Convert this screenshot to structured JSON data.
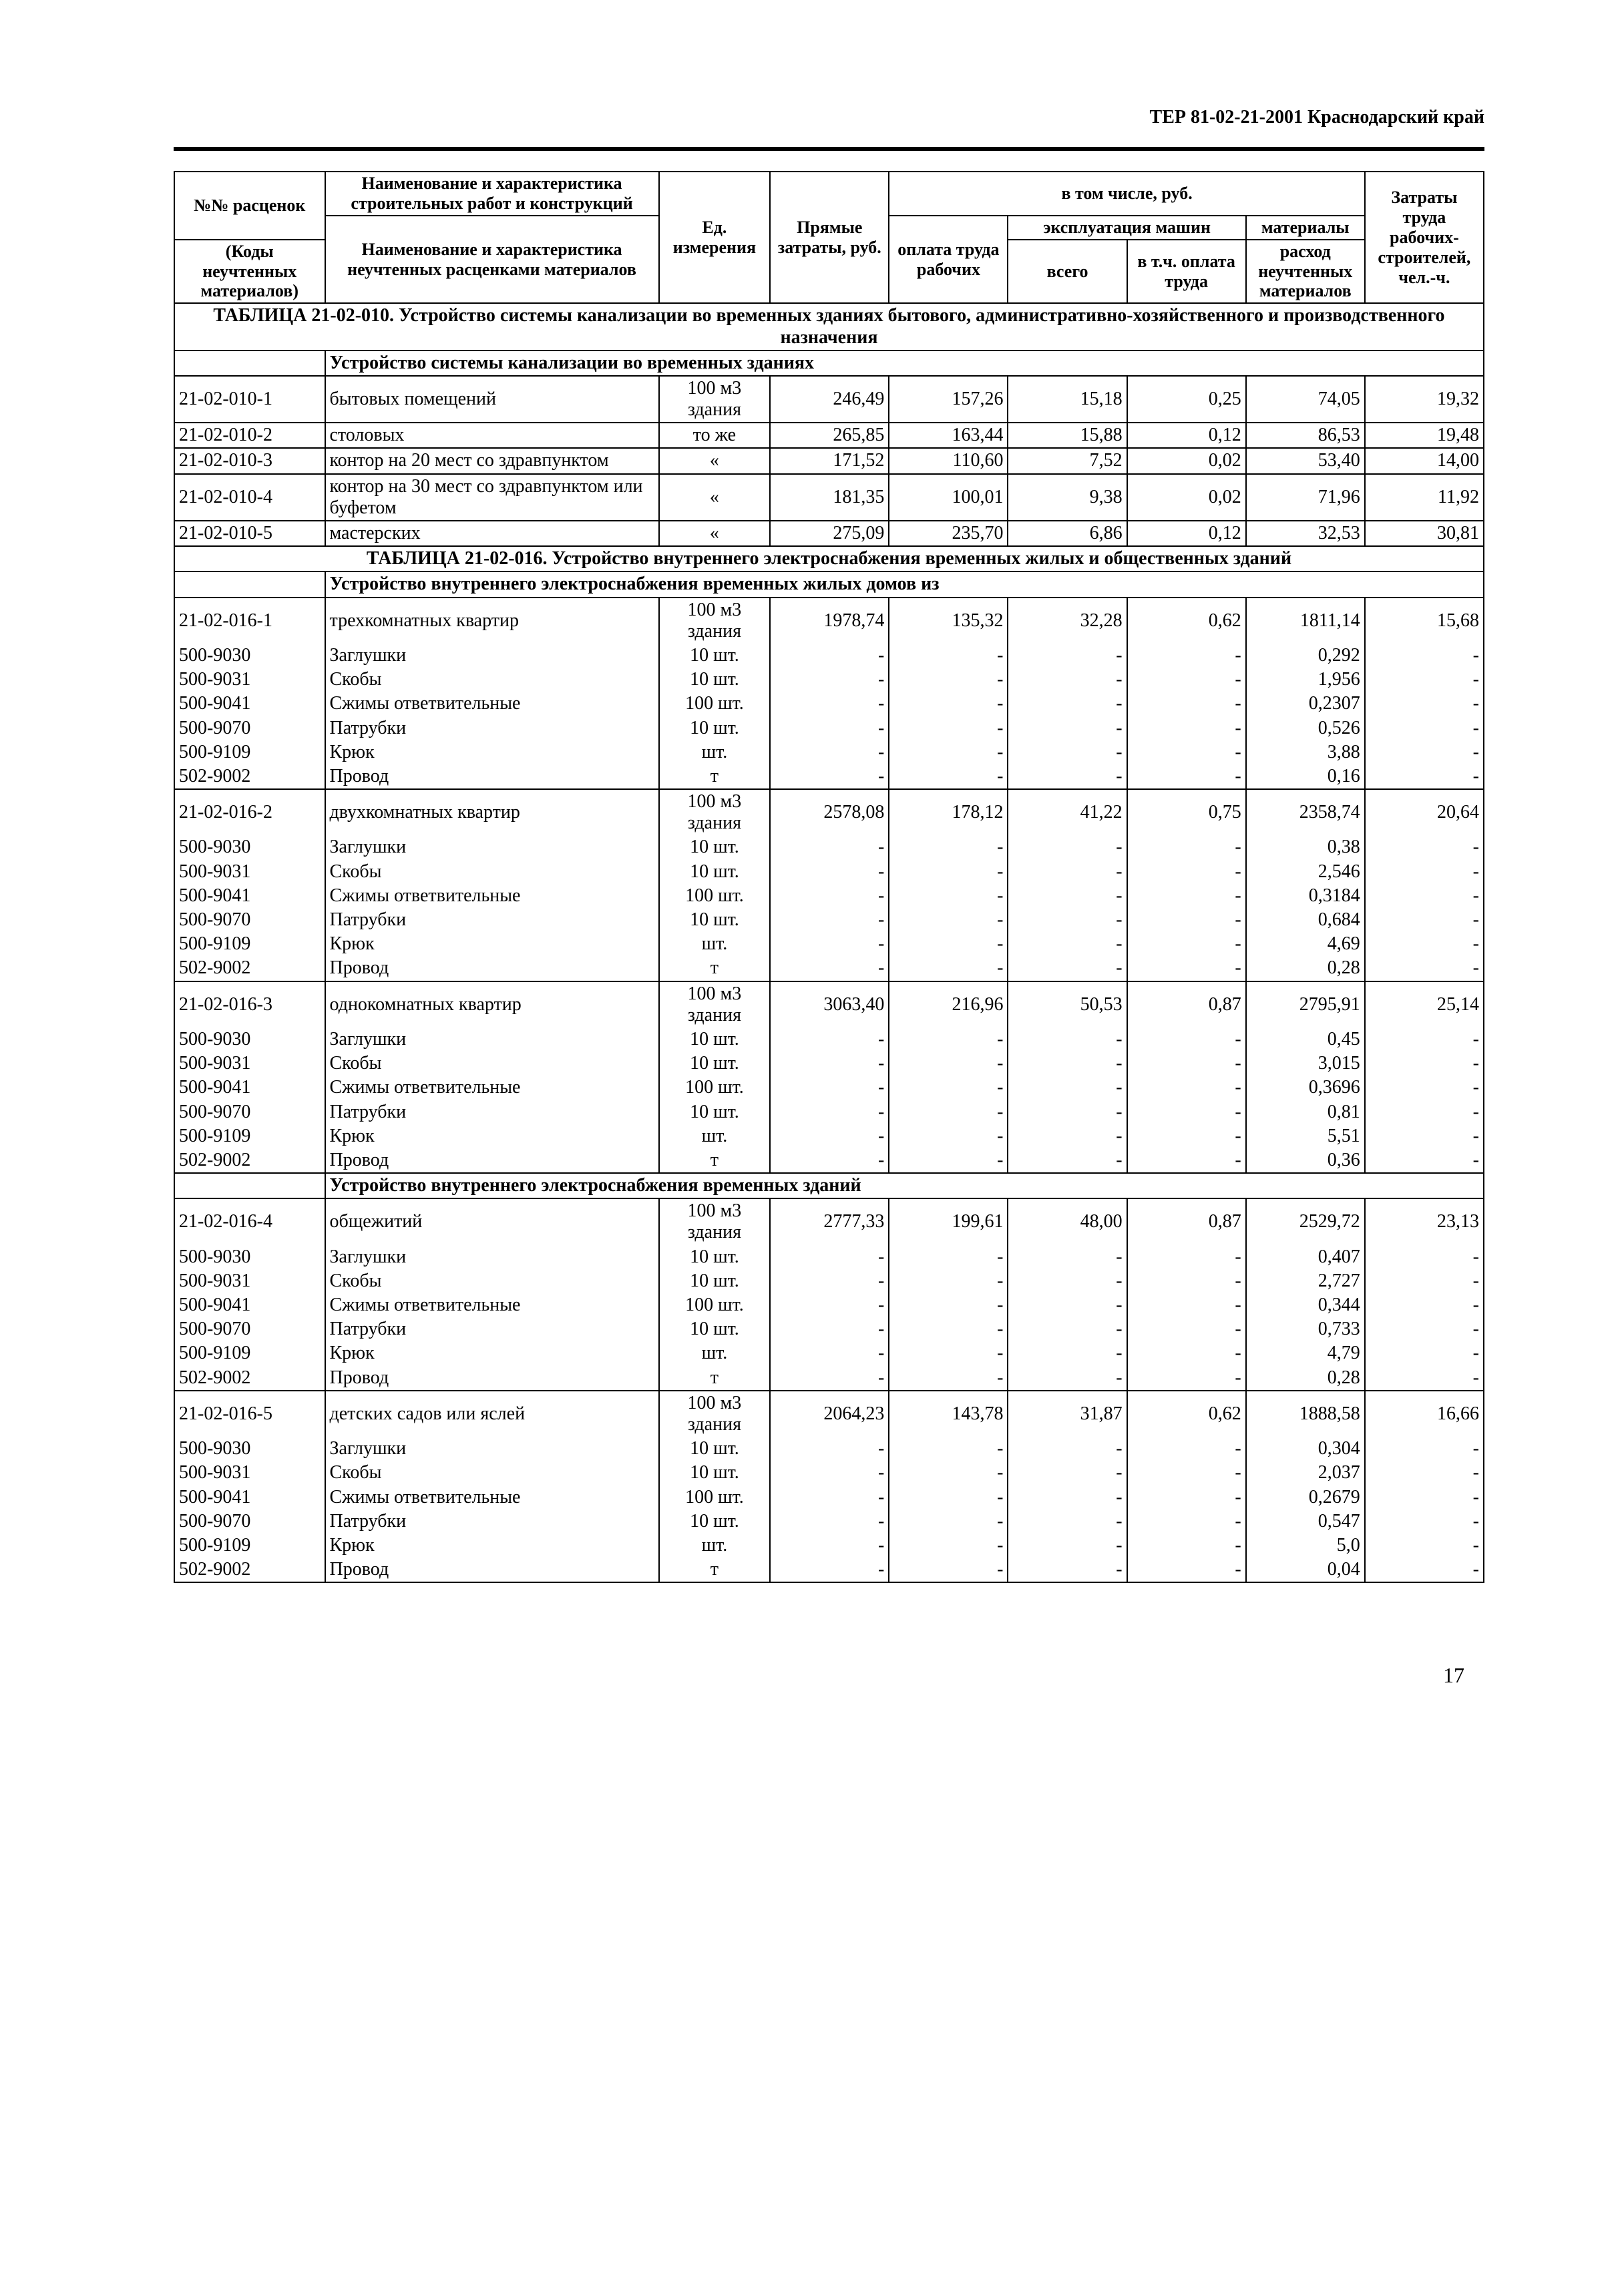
{
  "header": "ТЕР 81-02-21-2001   Краснодарский край",
  "page_number": "17",
  "thead": {
    "r1c1": "№№ расценок",
    "r1c2": "Наименование и характеристика строительных работ и конструкций",
    "r1c3": "Ед. измерения",
    "r1c4": "Прямые затраты, руб.",
    "r1c5": "в том числе, руб.",
    "r1c9": "Затраты труда рабочих-строителей, чел.-ч.",
    "r2c1": "(Коды неучтенных материалов)",
    "r2c2": "Наименование и характеристика неучтенных расценками материалов",
    "r2c5": "оплата труда рабочих",
    "r2c6": "эксплуатация машин",
    "r2c8": "материалы",
    "r3c6": "всего",
    "r3c7": "в т.ч. оплата труда",
    "r3c8": "расход неучтенных материалов"
  },
  "section1_title": "ТАБЛИЦА  21-02-010.  Устройство системы канализации во временных зданиях бытового, административно-хозяйственного и производственного назначения",
  "section1_sub": "Устройство системы канализации во временных зданиях",
  "s1rows": [
    {
      "code": "21-02-010-1",
      "desc": "бытовых помещений",
      "unit": "100 м3 здания",
      "v": [
        "246,49",
        "157,26",
        "15,18",
        "0,25",
        "74,05",
        "19,32"
      ]
    },
    {
      "code": "21-02-010-2",
      "desc": "столовых",
      "unit": "то же",
      "v": [
        "265,85",
        "163,44",
        "15,88",
        "0,12",
        "86,53",
        "19,48"
      ]
    },
    {
      "code": "21-02-010-3",
      "desc": "контор на 20 мест со здравпунктом",
      "unit": "«",
      "v": [
        "171,52",
        "110,60",
        "7,52",
        "0,02",
        "53,40",
        "14,00"
      ]
    },
    {
      "code": "21-02-010-4",
      "desc": "контор на 30 мест со здравпунктом или буфетом",
      "unit": "«",
      "v": [
        "181,35",
        "100,01",
        "9,38",
        "0,02",
        "71,96",
        "11,92"
      ]
    },
    {
      "code": "21-02-010-5",
      "desc": "мастерских",
      "unit": "«",
      "v": [
        "275,09",
        "235,70",
        "6,86",
        "0,12",
        "32,53",
        "30,81"
      ]
    }
  ],
  "section2_title": "ТАБЛИЦА  21-02-016.  Устройство внутреннего электроснабжения временных жилых и общественных зданий",
  "section2_sub": "Устройство внутреннего электроснабжения временных жилых домов из",
  "groups2": [
    {
      "code": "21-02-016-1",
      "desc": "трехкомнатных квартир",
      "unit": "100 м3 здания",
      "v": [
        "1978,74",
        "135,32",
        "32,28",
        "0,62",
        "1811,14",
        "15,68"
      ],
      "mats": [
        {
          "code": "500-9030",
          "desc": "Заглушки",
          "unit": "10 шт.",
          "m": "0,292"
        },
        {
          "code": "500-9031",
          "desc": "Скобы",
          "unit": "10 шт.",
          "m": "1,956"
        },
        {
          "code": "500-9041",
          "desc": "Сжимы ответвительные",
          "unit": "100 шт.",
          "m": "0,2307"
        },
        {
          "code": "500-9070",
          "desc": "Патрубки",
          "unit": "10 шт.",
          "m": "0,526"
        },
        {
          "code": "500-9109",
          "desc": "Крюк",
          "unit": "шт.",
          "m": "3,88"
        },
        {
          "code": "502-9002",
          "desc": "Провод",
          "unit": "т",
          "m": "0,16"
        }
      ]
    },
    {
      "code": "21-02-016-2",
      "desc": "двухкомнатных квартир",
      "unit": "100 м3 здания",
      "v": [
        "2578,08",
        "178,12",
        "41,22",
        "0,75",
        "2358,74",
        "20,64"
      ],
      "mats": [
        {
          "code": "500-9030",
          "desc": "Заглушки",
          "unit": "10 шт.",
          "m": "0,38"
        },
        {
          "code": "500-9031",
          "desc": "Скобы",
          "unit": "10 шт.",
          "m": "2,546"
        },
        {
          "code": "500-9041",
          "desc": "Сжимы ответвительные",
          "unit": "100 шт.",
          "m": "0,3184"
        },
        {
          "code": "500-9070",
          "desc": "Патрубки",
          "unit": "10 шт.",
          "m": "0,684"
        },
        {
          "code": "500-9109",
          "desc": "Крюк",
          "unit": "шт.",
          "m": "4,69"
        },
        {
          "code": "502-9002",
          "desc": "Провод",
          "unit": "т",
          "m": "0,28"
        }
      ]
    },
    {
      "code": "21-02-016-3",
      "desc": "однокомнатных квартир",
      "unit": "100 м3 здания",
      "v": [
        "3063,40",
        "216,96",
        "50,53",
        "0,87",
        "2795,91",
        "25,14"
      ],
      "mats": [
        {
          "code": "500-9030",
          "desc": "Заглушки",
          "unit": "10 шт.",
          "m": "0,45"
        },
        {
          "code": "500-9031",
          "desc": "Скобы",
          "unit": "10 шт.",
          "m": "3,015"
        },
        {
          "code": "500-9041",
          "desc": "Сжимы ответвительные",
          "unit": "100 шт.",
          "m": "0,3696"
        },
        {
          "code": "500-9070",
          "desc": "Патрубки",
          "unit": "10 шт.",
          "m": "0,81"
        },
        {
          "code": "500-9109",
          "desc": "Крюк",
          "unit": "шт.",
          "m": "5,51"
        },
        {
          "code": "502-9002",
          "desc": "Провод",
          "unit": "т",
          "m": "0,36"
        }
      ]
    }
  ],
  "section2b_sub": "Устройство внутреннего электроснабжения временных зданий",
  "groups2b": [
    {
      "code": "21-02-016-4",
      "desc": "общежитий",
      "unit": "100 м3 здания",
      "v": [
        "2777,33",
        "199,61",
        "48,00",
        "0,87",
        "2529,72",
        "23,13"
      ],
      "mats": [
        {
          "code": "500-9030",
          "desc": "Заглушки",
          "unit": "10 шт.",
          "m": "0,407"
        },
        {
          "code": "500-9031",
          "desc": "Скобы",
          "unit": "10 шт.",
          "m": "2,727"
        },
        {
          "code": "500-9041",
          "desc": "Сжимы ответвительные",
          "unit": "100 шт.",
          "m": "0,344"
        },
        {
          "code": "500-9070",
          "desc": "Патрубки",
          "unit": "10 шт.",
          "m": "0,733"
        },
        {
          "code": "500-9109",
          "desc": "Крюк",
          "unit": "шт.",
          "m": "4,79"
        },
        {
          "code": "502-9002",
          "desc": "Провод",
          "unit": "т",
          "m": "0,28"
        }
      ]
    },
    {
      "code": "21-02-016-5",
      "desc": "детских садов или яслей",
      "unit": "100 м3 здания",
      "v": [
        "2064,23",
        "143,78",
        "31,87",
        "0,62",
        "1888,58",
        "16,66"
      ],
      "mats": [
        {
          "code": "500-9030",
          "desc": "Заглушки",
          "unit": "10 шт.",
          "m": "0,304"
        },
        {
          "code": "500-9031",
          "desc": "Скобы",
          "unit": "10 шт.",
          "m": "2,037"
        },
        {
          "code": "500-9041",
          "desc": "Сжимы ответвительные",
          "unit": "100 шт.",
          "m": "0,2679"
        },
        {
          "code": "500-9070",
          "desc": "Патрубки",
          "unit": "10 шт.",
          "m": "0,547"
        },
        {
          "code": "500-9109",
          "desc": "Крюк",
          "unit": "шт.",
          "m": "5,0"
        },
        {
          "code": "502-9002",
          "desc": "Провод",
          "unit": "т",
          "m": "0,04"
        }
      ]
    }
  ]
}
